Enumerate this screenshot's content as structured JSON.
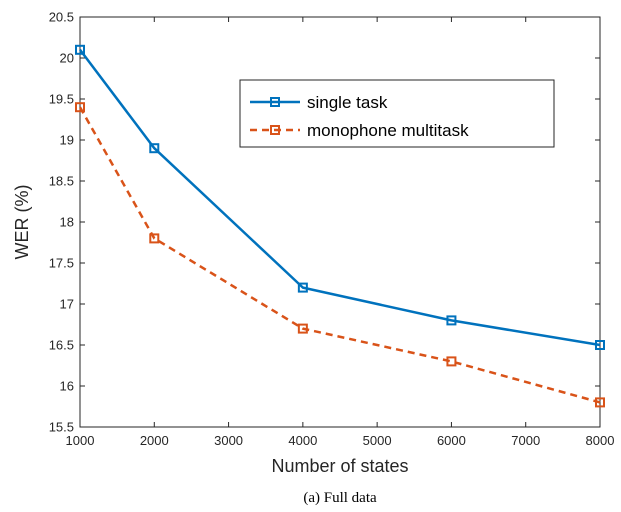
{
  "chart_data": {
    "type": "line",
    "xlabel": "Number of states",
    "ylabel": "WER (%)",
    "xlim": [
      1000,
      8000
    ],
    "ylim": [
      15.5,
      20.5
    ],
    "x_ticks": [
      1000,
      2000,
      3000,
      4000,
      5000,
      6000,
      7000,
      8000
    ],
    "y_ticks": [
      15.5,
      16,
      16.5,
      17,
      17.5,
      18,
      18.5,
      19,
      19.5,
      20,
      20.5
    ],
    "x": [
      1000,
      2000,
      4000,
      6000,
      8000
    ],
    "series": [
      {
        "name": "single task",
        "values": [
          20.1,
          18.9,
          17.2,
          16.8,
          16.5
        ],
        "color": "#0072BD",
        "line_style": "solid",
        "marker": "square"
      },
      {
        "name": "monophone multitask",
        "values": [
          19.4,
          17.8,
          16.7,
          16.3,
          15.8
        ],
        "color": "#D95319",
        "line_style": "dashed",
        "marker": "square"
      }
    ],
    "grid": false,
    "legend_position": "top-right"
  },
  "caption": "(a) Full data"
}
